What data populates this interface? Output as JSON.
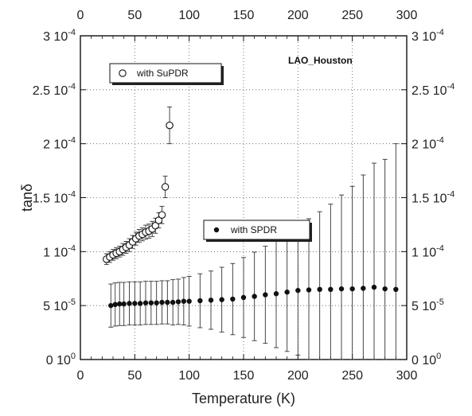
{
  "chart_data": {
    "type": "scatter",
    "title": "",
    "xlabel": "Temperature (K)",
    "ylabel": "tanδ",
    "xlim": [
      0,
      300
    ],
    "ylim": [
      0,
      0.0003
    ],
    "grid": true,
    "x_ticks": [
      {
        "value": 0,
        "label": "0"
      },
      {
        "value": 50,
        "label": "50"
      },
      {
        "value": 100,
        "label": "100"
      },
      {
        "value": 150,
        "label": "150"
      },
      {
        "value": 200,
        "label": "200"
      },
      {
        "value": 250,
        "label": "250"
      },
      {
        "value": 300,
        "label": "300"
      }
    ],
    "y_ticks": [
      {
        "value": 0,
        "mant": "0",
        "exp": "0"
      },
      {
        "value": 5e-05,
        "mant": "5",
        "exp": "-5"
      },
      {
        "value": 0.0001,
        "mant": "1",
        "exp": "-4"
      },
      {
        "value": 0.00015,
        "mant": "1.5",
        "exp": "-4"
      },
      {
        "value": 0.0002,
        "mant": "2",
        "exp": "-4"
      },
      {
        "value": 0.00025,
        "mant": "2.5",
        "exp": "-4"
      },
      {
        "value": 0.0003,
        "mant": "3",
        "exp": "-4"
      }
    ],
    "tick_base": "10",
    "annotation": "LAO_Houston",
    "series": [
      {
        "name": "with SuPDR",
        "marker": "open-circle",
        "x": [
          24,
          27,
          30,
          33,
          36,
          39,
          42,
          45,
          48,
          51,
          54,
          57,
          60,
          63,
          66,
          69,
          72,
          75,
          78,
          82
        ],
        "y": [
          9.3e-05,
          9.5e-05,
          9.7e-05,
          9.85e-05,
          0.0001,
          0.000102,
          0.000104,
          0.000106,
          0.000109,
          0.000112,
          0.0001145,
          0.000116,
          0.000118,
          0.000119,
          0.000121,
          0.000124,
          0.000129,
          0.000134,
          0.00016,
          0.000217
        ],
        "err": [
          5e-06,
          5e-06,
          5e-06,
          5e-06,
          5e-06,
          5.5e-06,
          5.5e-06,
          6e-06,
          6e-06,
          6e-06,
          6e-06,
          6e-06,
          6.5e-06,
          6.5e-06,
          7e-06,
          7e-06,
          7e-06,
          8e-06,
          1e-05,
          1.7e-05
        ]
      },
      {
        "name": "with SPDR",
        "marker": "filled-circle",
        "x": [
          28,
          32,
          36,
          40,
          45,
          50,
          55,
          60,
          65,
          70,
          75,
          80,
          85,
          90,
          95,
          100,
          110,
          120,
          130,
          140,
          150,
          160,
          170,
          180,
          190,
          200,
          210,
          220,
          230,
          240,
          250,
          260,
          270,
          280,
          290
        ],
        "y": [
          5e-05,
          5.1e-05,
          5.15e-05,
          5.15e-05,
          5.2e-05,
          5.2e-05,
          5.2e-05,
          5.25e-05,
          5.25e-05,
          5.25e-05,
          5.3e-05,
          5.3e-05,
          5.3e-05,
          5.35e-05,
          5.4e-05,
          5.4e-05,
          5.45e-05,
          5.5e-05,
          5.55e-05,
          5.6e-05,
          5.75e-05,
          5.85e-05,
          6e-05,
          6.1e-05,
          6.25e-05,
          6.4e-05,
          6.45e-05,
          6.5e-05,
          6.5e-05,
          6.55e-05,
          6.55e-05,
          6.6e-05,
          6.7e-05,
          6.55e-05,
          6.5e-05
        ],
        "err": [
          2e-05,
          2e-05,
          2e-05,
          2e-05,
          2e-05,
          2e-05,
          2e-05,
          2e-05,
          2e-05,
          2e-05,
          2e-05,
          2e-05,
          2.1e-05,
          2.1e-05,
          2.2e-05,
          2.3e-05,
          2.5e-05,
          2.7e-05,
          3e-05,
          3.3e-05,
          3.7e-05,
          4.1e-05,
          4.5e-05,
          5e-05,
          5.5e-05,
          6e-05,
          6.6e-05,
          7.2e-05,
          7.9e-05,
          8.7e-05,
          9.5e-05,
          0.000105,
          0.000115,
          0.00012,
          0.000135
        ]
      }
    ],
    "legend": [
      "with SuPDR",
      "with SPDR"
    ]
  }
}
